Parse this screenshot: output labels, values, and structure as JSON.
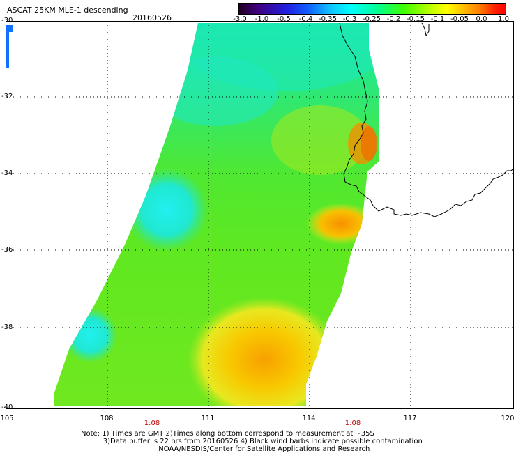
{
  "header": {
    "title": "ASCAT 25KM MLE-1 descending",
    "date": "20160526"
  },
  "colorbar": {
    "ticks": [
      "-3.0",
      "-1.0",
      "-0.5",
      "-0.4",
      "-0.35",
      "-0.3",
      "-0.25",
      "-0.2",
      "-0.15",
      "-0.1",
      "-0.05",
      "0.0",
      "1.0"
    ],
    "colors": [
      "#200020",
      "#400080",
      "#2020e0",
      "#1060ff",
      "#10c0ff",
      "#00ffff",
      "#00ff90",
      "#40ff00",
      "#c0ff00",
      "#ffff00",
      "#ffc000",
      "#ff8000",
      "#ff0000"
    ]
  },
  "axes": {
    "y_labels": [
      "-30",
      "-32",
      "-34",
      "-36",
      "-38",
      "-40"
    ],
    "x_labels": [
      "105",
      "108",
      "111",
      "114",
      "117",
      "120"
    ],
    "time_labels": [
      "1:08",
      "1:08"
    ]
  },
  "notes": {
    "line1": "Note: 1) Times are GMT 2)Times along bottom correspond to measurement at ~35S",
    "line2": "3)Data buffer is 22 hrs from 20160526 4) Black wind barbs indicate possible contamination",
    "line3": "NOAA/NESDIS/Center for Satellite Applications and Research"
  }
}
